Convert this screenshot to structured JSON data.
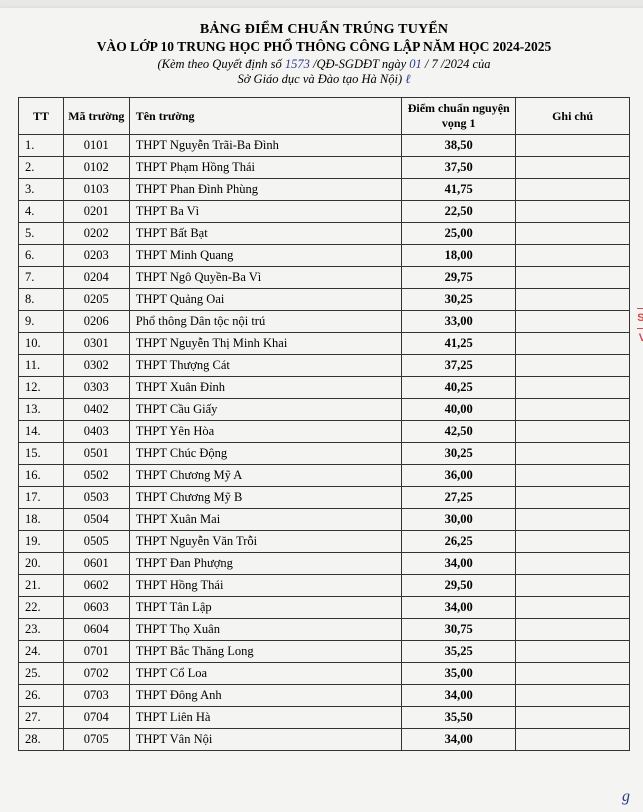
{
  "header": {
    "title1": "BẢNG ĐIỂM CHUẨN TRÚNG TUYỂN",
    "title2": "VÀO LỚP 10 TRUNG HỌC PHỔ THÔNG CÔNG LẬP NĂM HỌC 2024-2025",
    "sub_prefix": "(Kèm theo Quyết định số ",
    "decision_no": "1573",
    "sub_mid": " /QĐ-SGDĐT ngày ",
    "day": "01",
    "sub_after_day": " / 7 /2024 của",
    "sub_line2": "Sở Giáo dục và Đào tạo Hà Nội) "
  },
  "columns": {
    "tt": "TT",
    "ma": "Mã trường",
    "ten": "Tên trường",
    "diem": "Điểm chuẩn nguyện vọng 1",
    "ghi": "Ghi chú"
  },
  "rows": [
    {
      "tt": "1.",
      "ma": "0101",
      "ten": "THPT Nguyễn Trãi-Ba Đình",
      "diem": "38,50",
      "ghi": ""
    },
    {
      "tt": "2.",
      "ma": "0102",
      "ten": "THPT Phạm Hồng Thái",
      "diem": "37,50",
      "ghi": ""
    },
    {
      "tt": "3.",
      "ma": "0103",
      "ten": "THPT Phan Đình Phùng",
      "diem": "41,75",
      "ghi": ""
    },
    {
      "tt": "4.",
      "ma": "0201",
      "ten": "THPT Ba Vì",
      "diem": "22,50",
      "ghi": ""
    },
    {
      "tt": "5.",
      "ma": "0202",
      "ten": "THPT Bất Bạt",
      "diem": "25,00",
      "ghi": ""
    },
    {
      "tt": "6.",
      "ma": "0203",
      "ten": "THPT Minh Quang",
      "diem": "18,00",
      "ghi": ""
    },
    {
      "tt": "7.",
      "ma": "0204",
      "ten": "THPT Ngô Quyền-Ba Vì",
      "diem": "29,75",
      "ghi": ""
    },
    {
      "tt": "8.",
      "ma": "0205",
      "ten": "THPT Quảng Oai",
      "diem": "30,25",
      "ghi": ""
    },
    {
      "tt": "9.",
      "ma": "0206",
      "ten": "Phổ thông Dân tộc nội trú",
      "diem": "33,00",
      "ghi": ""
    },
    {
      "tt": "10.",
      "ma": "0301",
      "ten": "THPT Nguyễn Thị Minh Khai",
      "diem": "41,25",
      "ghi": ""
    },
    {
      "tt": "11.",
      "ma": "0302",
      "ten": "THPT Thượng Cát",
      "diem": "37,25",
      "ghi": ""
    },
    {
      "tt": "12.",
      "ma": "0303",
      "ten": "THPT Xuân Đỉnh",
      "diem": "40,25",
      "ghi": ""
    },
    {
      "tt": "13.",
      "ma": "0402",
      "ten": "THPT Cầu Giấy",
      "diem": "40,00",
      "ghi": ""
    },
    {
      "tt": "14.",
      "ma": "0403",
      "ten": "THPT Yên Hòa",
      "diem": "42,50",
      "ghi": ""
    },
    {
      "tt": "15.",
      "ma": "0501",
      "ten": "THPT Chúc Động",
      "diem": "30,25",
      "ghi": ""
    },
    {
      "tt": "16.",
      "ma": "0502",
      "ten": "THPT Chương Mỹ A",
      "diem": "36,00",
      "ghi": ""
    },
    {
      "tt": "17.",
      "ma": "0503",
      "ten": "THPT Chương Mỹ B",
      "diem": "27,25",
      "ghi": ""
    },
    {
      "tt": "18.",
      "ma": "0504",
      "ten": "THPT Xuân Mai",
      "diem": "30,00",
      "ghi": ""
    },
    {
      "tt": "19.",
      "ma": "0505",
      "ten": "THPT Nguyễn Văn Trỗi",
      "diem": "26,25",
      "ghi": ""
    },
    {
      "tt": "20.",
      "ma": "0601",
      "ten": "THPT Đan Phượng",
      "diem": "34,00",
      "ghi": ""
    },
    {
      "tt": "21.",
      "ma": "0602",
      "ten": "THPT Hồng Thái",
      "diem": "29,50",
      "ghi": ""
    },
    {
      "tt": "22.",
      "ma": "0603",
      "ten": "THPT Tân Lập",
      "diem": "34,00",
      "ghi": ""
    },
    {
      "tt": "23.",
      "ma": "0604",
      "ten": "THPT Thọ Xuân",
      "diem": "30,75",
      "ghi": ""
    },
    {
      "tt": "24.",
      "ma": "0701",
      "ten": "THPT Bắc Thăng Long",
      "diem": "35,25",
      "ghi": ""
    },
    {
      "tt": "25.",
      "ma": "0702",
      "ten": "THPT Cổ Loa",
      "diem": "35,00",
      "ghi": ""
    },
    {
      "tt": "26.",
      "ma": "0703",
      "ten": "THPT Đông Anh",
      "diem": "34,00",
      "ghi": ""
    },
    {
      "tt": "27.",
      "ma": "0704",
      "ten": "THPT Liên Hà",
      "diem": "35,50",
      "ghi": ""
    },
    {
      "tt": "28.",
      "ma": "0705",
      "ten": "THPT Vân Nội",
      "diem": "34,00",
      "ghi": ""
    }
  ],
  "stamp": {
    "l1": "SỞ",
    "l2": "VÀ"
  },
  "signature": "g"
}
